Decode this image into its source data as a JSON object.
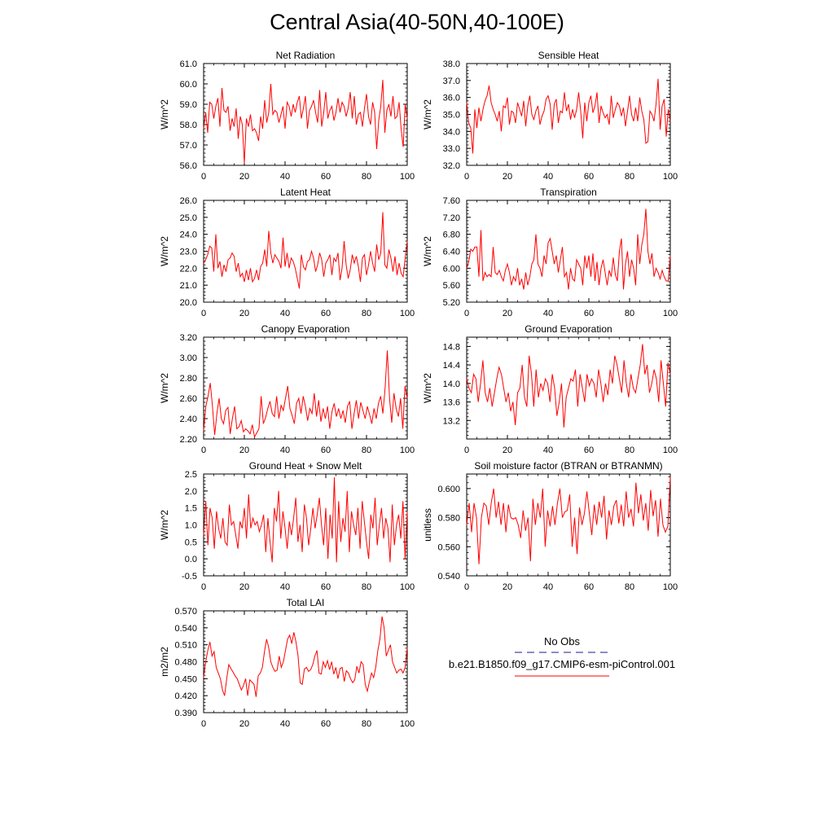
{
  "title": "Central Asia(40-50N,40-100E)",
  "legend": {
    "entries": [
      {
        "label": "No Obs",
        "color": "#1a1a8c",
        "style": "dashed"
      },
      {
        "label": "b.e21.B1850.f09_g17.CMIP6-esm-piControl.001",
        "color": "#ff0000",
        "style": "solid"
      }
    ]
  },
  "chart_data": [
    {
      "type": "line",
      "title": "Net Radiation",
      "ylabel": "W/m^2",
      "xlim": [
        0,
        100
      ],
      "ylim": [
        56.0,
        61.0
      ],
      "xticks": [
        "0",
        "20",
        "40",
        "60",
        "80",
        "100"
      ],
      "yticks": [
        "56.0",
        "57.0",
        "58.0",
        "59.0",
        "60.0",
        "61.0"
      ],
      "x_start": 0,
      "values": [
        57.8,
        58.6,
        57.6,
        59.1,
        59.0,
        58.3,
        58.9,
        59.3,
        57.9,
        59.8,
        58.7,
        58.6,
        58.9,
        57.7,
        58.3,
        57.9,
        58.8,
        57.3,
        58.4,
        58.0,
        56.1,
        58.3,
        57.9,
        58.5,
        57.7,
        57.8,
        57.6,
        57.2,
        58.4,
        57.8,
        59.2,
        58.1,
        58.6,
        60.0,
        58.5,
        58.7,
        58.6,
        58.1,
        58.5,
        58.9,
        57.8,
        59.1,
        58.9,
        58.4,
        59.0,
        58.6,
        59.1,
        59.4,
        58.3,
        58.8,
        59.4,
        57.8,
        58.7,
        58.9,
        59.2,
        58.6,
        58.1,
        59.7,
        57.9,
        58.6,
        59.6,
        58.3,
        58.7,
        58.9,
        58.2,
        58.6,
        59.3,
        58.6,
        59.1,
        58.9,
        58.4,
        58.8,
        59.6,
        58.3,
        59.4,
        58.0,
        58.5,
        58.6,
        57.9,
        58.8,
        59.5,
        58.4,
        58.0,
        59.1,
        58.6,
        56.8,
        58.2,
        58.9,
        60.2,
        57.6,
        58.7,
        59.0,
        58.4,
        59.4,
        58.3,
        58.4,
        59.1,
        57.8,
        56.9,
        59.0,
        58.3
      ],
      "ticks_side": "left-ylabels"
    },
    {
      "type": "line",
      "title": "Sensible Heat",
      "ylabel": "W/m^2",
      "xlim": [
        0,
        100
      ],
      "ylim": [
        32.0,
        38.0
      ],
      "xticks": [
        "0",
        "20",
        "40",
        "60",
        "80",
        "100"
      ],
      "yticks": [
        "32.0",
        "33.0",
        "34.0",
        "35.0",
        "36.0",
        "37.0",
        "38.0"
      ],
      "x_start": 0,
      "values": [
        35.7,
        34.5,
        34.2,
        32.7,
        35.3,
        34.2,
        35.4,
        34.6,
        35.3,
        35.8,
        36.1,
        36.7,
        35.7,
        35.3,
        35.0,
        34.6,
        35.2,
        34.0,
        35.5,
        35.4,
        36.0,
        34.4,
        35.2,
        35.1,
        34.5,
        35.7,
        35.3,
        34.9,
        35.8,
        34.3,
        35.5,
        36.1,
        35.0,
        34.7,
        35.2,
        35.5,
        34.4,
        34.9,
        35.2,
        35.9,
        36.1,
        35.6,
        34.1,
        35.6,
        35.9,
        34.5,
        35.2,
        35.1,
        36.3,
        35.2,
        35.6,
        34.7,
        35.3,
        34.8,
        35.3,
        36.3,
        35.2,
        33.6,
        35.7,
        34.6,
        35.7,
        36.1,
        35.1,
        35.5,
        36.3,
        34.5,
        35.5,
        35.1,
        34.8,
        35.0,
        34.4,
        36.1,
        34.8,
        35.3,
        35.7,
        35.5,
        34.9,
        35.4,
        34.3,
        35.2,
        36.1,
        35.0,
        34.6,
        35.4,
        34.6,
        36.0,
        35.2,
        34.7,
        33.3,
        33.4,
        35.2,
        35.0,
        34.6,
        35.6,
        37.1,
        34.1,
        35.5,
        35.9,
        33.7,
        35.3,
        34.6
      ],
      "ticks_side": "left-ylabels"
    },
    {
      "type": "line",
      "title": "Latent Heat",
      "ylabel": "W/m^2",
      "xlim": [
        0,
        100
      ],
      "ylim": [
        20.0,
        26.0
      ],
      "xticks": [
        "0",
        "20",
        "40",
        "60",
        "80",
        "100"
      ],
      "yticks": [
        "20.0",
        "21.0",
        "22.0",
        "23.0",
        "24.0",
        "25.0",
        "26.0"
      ],
      "x_start": 0,
      "values": [
        22.3,
        22.5,
        22.8,
        23.3,
        23.2,
        21.8,
        24.0,
        22.0,
        22.4,
        21.5,
        22.2,
        21.8,
        22.5,
        22.6,
        22.9,
        22.7,
        21.8,
        22.3,
        21.5,
        21.7,
        21.2,
        21.9,
        21.3,
        22.0,
        21.2,
        21.4,
        21.9,
        21.3,
        22.1,
        22.3,
        23.1,
        22.1,
        24.2,
        22.9,
        22.3,
        22.8,
        22.6,
        22.4,
        22.0,
        23.8,
        22.1,
        22.9,
        22.0,
        22.6,
        22.4,
        22.0,
        21.4,
        20.8,
        22.8,
        22.1,
        21.9,
        22.4,
        22.5,
        23.0,
        22.6,
        21.8,
        22.2,
        22.9,
        22.5,
        21.5,
        22.3,
        22.5,
        22.8,
        21.6,
        22.6,
        22.4,
        22.9,
        21.3,
        22.0,
        23.6,
        22.2,
        21.4,
        21.9,
        22.8,
        22.3,
        22.7,
        22.1,
        21.2,
        22.6,
        22.8,
        21.6,
        22.2,
        23.0,
        22.3,
        21.8,
        23.4,
        22.5,
        22.9,
        25.3,
        22.2,
        22.0,
        23.1,
        22.6,
        21.8,
        22.7,
        21.6,
        22.3,
        21.7,
        21.5,
        22.6,
        23.6
      ],
      "ticks_side": "left-ylabels"
    },
    {
      "type": "line",
      "title": "Transpiration",
      "ylabel": "W/m^2",
      "xlim": [
        0,
        100
      ],
      "ylim": [
        5.2,
        7.6
      ],
      "xticks": [
        "0",
        "20",
        "40",
        "60",
        "80",
        "100"
      ],
      "yticks": [
        "5.20",
        "5.60",
        "6.00",
        "6.40",
        "6.80",
        "7.20",
        "7.60"
      ],
      "x_start": 0,
      "values": [
        6.0,
        6.15,
        6.45,
        6.4,
        6.5,
        6.5,
        5.8,
        6.9,
        5.7,
        5.9,
        5.8,
        5.85,
        5.8,
        6.5,
        5.9,
        5.85,
        5.95,
        5.8,
        5.7,
        5.95,
        6.1,
        5.9,
        5.6,
        5.8,
        5.7,
        6.0,
        5.6,
        5.75,
        5.5,
        5.9,
        5.6,
        5.8,
        6.1,
        6.2,
        6.8,
        6.1,
        6.0,
        5.8,
        6.3,
        6.1,
        6.6,
        6.7,
        6.4,
        6.1,
        6.3,
        5.9,
        6.2,
        6.5,
        5.8,
        5.9,
        5.5,
        6.0,
        5.75,
        5.7,
        6.2,
        6.1,
        6.0,
        5.6,
        6.3,
        6.0,
        6.3,
        5.8,
        6.35,
        5.7,
        6.15,
        5.6,
        6.0,
        6.2,
        5.9,
        5.6,
        5.95,
        5.8,
        6.25,
        5.85,
        5.7,
        6.4,
        6.7,
        5.5,
        6.1,
        6.4,
        5.8,
        6.2,
        6.0,
        5.6,
        6.8,
        6.1,
        6.55,
        6.8,
        7.4,
        6.4,
        6.1,
        6.35,
        5.8,
        6.0,
        5.9,
        5.75,
        5.95,
        5.8,
        5.7,
        5.7,
        6.3
      ],
      "ticks_side": "left-ylabels"
    },
    {
      "type": "line",
      "title": "Canopy Evaporation",
      "ylabel": "W/m^2",
      "xlim": [
        0,
        100
      ],
      "ylim": [
        2.2,
        3.2
      ],
      "xticks": [
        "0",
        "20",
        "40",
        "60",
        "80",
        "100"
      ],
      "yticks": [
        "2.20",
        "2.40",
        "2.60",
        "2.80",
        "3.00",
        "3.20"
      ],
      "x_start": 0,
      "values": [
        2.28,
        2.52,
        2.62,
        2.75,
        2.52,
        2.24,
        2.45,
        2.6,
        2.4,
        2.35,
        2.48,
        2.51,
        2.25,
        2.4,
        2.52,
        2.3,
        2.32,
        2.38,
        2.27,
        2.3,
        2.28,
        2.25,
        2.34,
        2.22,
        2.26,
        2.3,
        2.62,
        2.35,
        2.41,
        2.5,
        2.57,
        2.45,
        2.42,
        2.62,
        2.4,
        2.53,
        2.48,
        2.6,
        2.72,
        2.5,
        2.43,
        2.35,
        2.55,
        2.6,
        2.45,
        2.62,
        2.52,
        2.38,
        2.5,
        2.45,
        2.65,
        2.42,
        2.58,
        2.37,
        2.5,
        2.4,
        2.52,
        2.3,
        2.47,
        2.55,
        2.42,
        2.5,
        2.4,
        2.48,
        2.36,
        2.52,
        2.57,
        2.3,
        2.45,
        2.58,
        2.4,
        2.56,
        2.48,
        2.4,
        2.52,
        2.44,
        2.35,
        2.5,
        2.4,
        2.55,
        2.62,
        2.45,
        2.7,
        3.07,
        2.6,
        2.36,
        2.65,
        2.5,
        2.42,
        2.6,
        2.3,
        2.72,
        2.6
      ],
      "ticks_side": "left-ylabels"
    },
    {
      "type": "line",
      "title": "Ground Evaporation",
      "ylabel": "W/m^2",
      "xlim": [
        0,
        100
      ],
      "ylim": [
        12.8,
        15.0
      ],
      "xticks": [
        "0",
        "20",
        "40",
        "60",
        "80",
        "100"
      ],
      "yticks": [
        "13.2",
        "13.6",
        "14.0",
        "14.4",
        "14.8"
      ],
      "x_start": 0,
      "values": [
        14.1,
        13.9,
        13.8,
        14.2,
        14.1,
        13.6,
        14.0,
        14.5,
        13.8,
        13.6,
        13.9,
        13.5,
        13.8,
        14.1,
        14.35,
        14.2,
        13.9,
        13.6,
        13.8,
        13.4,
        13.6,
        13.1,
        13.8,
        13.9,
        14.4,
        13.7,
        13.5,
        14.6,
        14.2,
        13.5,
        14.3,
        13.7,
        14.0,
        13.85,
        14.1,
        14.0,
        13.6,
        14.2,
        13.9,
        13.3,
        13.6,
        14.0,
        13.05,
        13.7,
        13.9,
        14.1,
        14.05,
        14.3,
        13.5,
        14.2,
        13.9,
        13.6,
        14.2,
        13.95,
        14.1,
        14.0,
        13.7,
        14.3,
        14.0,
        13.6,
        14.0,
        13.75,
        14.3,
        14.0,
        14.6,
        14.4,
        14.1,
        13.8,
        14.5,
        14.0,
        13.7,
        14.2,
        13.9,
        13.8,
        14.1,
        14.4,
        14.85,
        14.2,
        14.4,
        13.8,
        14.0,
        14.3,
        14.1,
        13.6,
        14.5,
        14.0,
        13.5,
        14.45,
        14.2
      ],
      "ticks_side": "left-ylabels"
    },
    {
      "type": "line",
      "title": "Ground Heat + Snow Melt",
      "ylabel": "W/m^2",
      "xlim": [
        0,
        100
      ],
      "ylim": [
        -0.5,
        2.5
      ],
      "xticks": [
        "0",
        "20",
        "40",
        "60",
        "80",
        "100"
      ],
      "yticks": [
        "-0.5",
        "0.0",
        "0.5",
        "1.0",
        "1.5",
        "2.0",
        "2.5"
      ],
      "x_start": 0,
      "values": [
        0.7,
        1.7,
        0.4,
        1.5,
        1.2,
        0.3,
        1.4,
        0.9,
        0.6,
        1.2,
        0.5,
        0.4,
        1.6,
        1.0,
        1.1,
        0.7,
        0.3,
        1.1,
        0.9,
        1.5,
        0.6,
        1.9,
        0.9,
        1.2,
        1.0,
        1.1,
        0.8,
        1.0,
        1.3,
        0.2,
        1.2,
        0.5,
        -0.1,
        1.5,
        1.1,
        2.0,
        0.6,
        1.4,
        0.9,
        0.3,
        1.1,
        0.7,
        1.2,
        1.8,
        0.5,
        1.0,
        0.2,
        1.6,
        1.2,
        0.4,
        0.9,
        1.5,
        0.9,
        1.3,
        1.8,
        1.0,
        0.4,
        1.5,
        0.0,
        1.3,
        0.6,
        2.4,
        -0.1,
        1.7,
        0.5,
        1.2,
        0.8,
        2.0,
        0.2,
        1.4,
        1.0,
        0.7,
        1.5,
        0.3,
        1.7,
        1.1,
        0.5,
        0.0,
        1.3,
        0.9,
        1.8,
        0.4,
        1.0,
        1.5,
        0.6,
        1.2,
        0.9,
        -0.1,
        1.6,
        0.4,
        1.0,
        1.3,
        0.6,
        1.7,
        0.0,
        1.4
      ],
      "ticks_side": "left-ylabels"
    },
    {
      "type": "line",
      "title": "Soil moisture factor (BTRAN or BTRANMN)",
      "ylabel": "unitless",
      "xlim": [
        0,
        100
      ],
      "ylim": [
        0.54,
        0.61
      ],
      "xticks": [
        "0",
        "20",
        "40",
        "60",
        "80",
        "100"
      ],
      "yticks": [
        "0.540",
        "0.560",
        "0.580",
        "0.600"
      ],
      "x_start": 0,
      "values": [
        0.575,
        0.59,
        0.57,
        0.59,
        0.58,
        0.548,
        0.58,
        0.59,
        0.588,
        0.575,
        0.59,
        0.6,
        0.58,
        0.591,
        0.575,
        0.59,
        0.57,
        0.589,
        0.58,
        0.579,
        0.58,
        0.575,
        0.566,
        0.585,
        0.571,
        0.58,
        0.55,
        0.593,
        0.575,
        0.59,
        0.58,
        0.6,
        0.56,
        0.585,
        0.574,
        0.588,
        0.575,
        0.59,
        0.6,
        0.58,
        0.584,
        0.585,
        0.596,
        0.56,
        0.58,
        0.555,
        0.587,
        0.575,
        0.583,
        0.598,
        0.583,
        0.568,
        0.589,
        0.575,
        0.591,
        0.58,
        0.595,
        0.565,
        0.585,
        0.575,
        0.588,
        0.592,
        0.576,
        0.589,
        0.574,
        0.598,
        0.58,
        0.586,
        0.574,
        0.604,
        0.583,
        0.596,
        0.578,
        0.59,
        0.571,
        0.599,
        0.581,
        0.592,
        0.567,
        0.593,
        0.575,
        0.57,
        0.574,
        0.608
      ],
      "ticks_side": "left-ylabels"
    },
    {
      "type": "line",
      "title": "Total LAI",
      "ylabel": "m2/m2",
      "xlim": [
        0,
        100
      ],
      "ylim": [
        0.39,
        0.57
      ],
      "xticks": [
        "0",
        "20",
        "40",
        "60",
        "80",
        "100"
      ],
      "yticks": [
        "0.390",
        "0.420",
        "0.450",
        "0.480",
        "0.510",
        "0.540",
        "0.570"
      ],
      "x_start": 0,
      "values": [
        0.452,
        0.48,
        0.5,
        0.515,
        0.49,
        0.498,
        0.47,
        0.46,
        0.45,
        0.43,
        0.42,
        0.45,
        0.475,
        0.468,
        0.462,
        0.455,
        0.45,
        0.44,
        0.43,
        0.438,
        0.45,
        0.42,
        0.448,
        0.444,
        0.44,
        0.418,
        0.455,
        0.46,
        0.47,
        0.498,
        0.52,
        0.505,
        0.48,
        0.47,
        0.463,
        0.465,
        0.49,
        0.47,
        0.48,
        0.5,
        0.52,
        0.527,
        0.512,
        0.532,
        0.515,
        0.49,
        0.443,
        0.44,
        0.467,
        0.47,
        0.463,
        0.466,
        0.475,
        0.49,
        0.5,
        0.46,
        0.458,
        0.48,
        0.47,
        0.482,
        0.466,
        0.48,
        0.458,
        0.47,
        0.45,
        0.468,
        0.47,
        0.445,
        0.464,
        0.46,
        0.45,
        0.443,
        0.448,
        0.472,
        0.46,
        0.48,
        0.475,
        0.44,
        0.428,
        0.445,
        0.46,
        0.452,
        0.47,
        0.5,
        0.52,
        0.56,
        0.54,
        0.49,
        0.5,
        0.51,
        0.48,
        0.47,
        0.46,
        0.465,
        0.467,
        0.46,
        0.47,
        0.505
      ],
      "ticks_side": "left-ylabels"
    }
  ]
}
